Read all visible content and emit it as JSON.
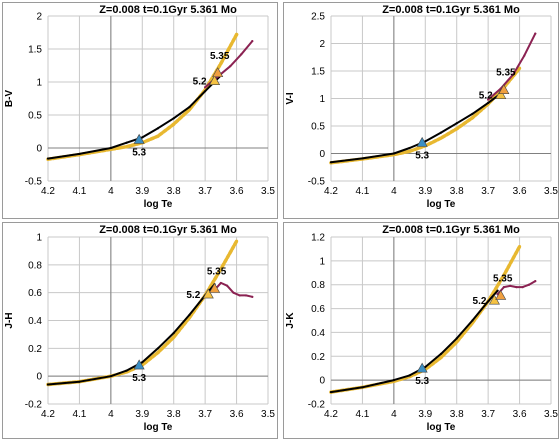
{
  "chart_data": [
    {
      "type": "line",
      "title": "Z=0.008  t=0.1Gyr 5.361 Mo",
      "xlabel": "log Te",
      "ylabel": "B-V",
      "xlim": [
        4.2,
        3.5
      ],
      "ylim": [
        -0.5,
        2
      ],
      "xticks": [
        "4.2",
        "4.1",
        "4",
        "3.9",
        "3.8",
        "3.7",
        "3.6",
        "3.5"
      ],
      "yticks": [
        "-0.5",
        "0",
        "0.5",
        "1",
        "1.5",
        "2"
      ],
      "grid": true,
      "series": [
        {
          "color": "#E8B830",
          "style": "dashed",
          "x": [
            4.2,
            4.1,
            4.0,
            3.95,
            3.9,
            3.85,
            3.8,
            3.75,
            3.7,
            3.65,
            3.6
          ],
          "y": [
            -0.17,
            -0.1,
            -0.02,
            0.02,
            0.08,
            0.18,
            0.36,
            0.58,
            0.88,
            1.28,
            1.72
          ]
        },
        {
          "color": "#000000",
          "style": "solid",
          "x": [
            4.2,
            4.1,
            4.0,
            3.95,
            3.9,
            3.85,
            3.8,
            3.75,
            3.7,
            3.65
          ],
          "y": [
            -0.16,
            -0.09,
            0.0,
            0.08,
            0.16,
            0.3,
            0.45,
            0.62,
            0.86,
            1.1
          ]
        },
        {
          "color": "#8B2252",
          "style": "solid",
          "x": [
            3.7,
            3.66,
            3.62,
            3.585,
            3.55
          ],
          "y": [
            0.92,
            1.08,
            1.24,
            1.42,
            1.62
          ]
        }
      ],
      "markers": [
        {
          "label": "5.3",
          "x": 3.91,
          "y": 0.13,
          "color": "#3B8FC4"
        },
        {
          "label": "5.2",
          "x": 3.67,
          "y": 1.02,
          "color": "#F5C242"
        },
        {
          "label": "5.35",
          "x": 3.66,
          "y": 1.14,
          "color": "#F0A040"
        }
      ]
    },
    {
      "type": "line",
      "title": "Z=0.008  t=0.1Gyr 5.361 Mo",
      "xlabel": "log Te",
      "ylabel": "V-I",
      "xlim": [
        4.2,
        3.5
      ],
      "ylim": [
        -0.5,
        2.5
      ],
      "xticks": [
        "4.2",
        "4.1",
        "4",
        "3.9",
        "3.8",
        "3.7",
        "3.6",
        "3.5"
      ],
      "yticks": [
        "-0.5",
        "0",
        "0.5",
        "1",
        "1.5",
        "2",
        "2.5"
      ],
      "grid": true,
      "series": [
        {
          "color": "#E8B830",
          "style": "dashed",
          "x": [
            4.2,
            4.1,
            4.0,
            3.95,
            3.9,
            3.85,
            3.8,
            3.75,
            3.7,
            3.65,
            3.6
          ],
          "y": [
            -0.17,
            -0.1,
            -0.02,
            0.04,
            0.14,
            0.28,
            0.45,
            0.65,
            0.9,
            1.2,
            1.55
          ]
        },
        {
          "color": "#000000",
          "style": "solid",
          "x": [
            4.2,
            4.1,
            4.0,
            3.95,
            3.9,
            3.85,
            3.8,
            3.75,
            3.7,
            3.65
          ],
          "y": [
            -0.16,
            -0.09,
            0.0,
            0.1,
            0.22,
            0.38,
            0.55,
            0.72,
            0.92,
            1.13
          ]
        },
        {
          "color": "#8B2252",
          "style": "solid",
          "x": [
            3.7,
            3.66,
            3.62,
            3.585,
            3.55
          ],
          "y": [
            0.98,
            1.18,
            1.44,
            1.78,
            2.18
          ]
        }
      ],
      "markers": [
        {
          "label": "5.3",
          "x": 3.91,
          "y": 0.2,
          "color": "#3B8FC4"
        },
        {
          "label": "5.2",
          "x": 3.66,
          "y": 1.07,
          "color": "#F5C242"
        },
        {
          "label": "5.35",
          "x": 3.65,
          "y": 1.16,
          "color": "#F0A040"
        }
      ]
    },
    {
      "type": "line",
      "title": "Z=0.008  t=0.1Gyr 5.361 Mo",
      "xlabel": "log Te",
      "ylabel": "J-H",
      "xlim": [
        4.2,
        3.5
      ],
      "ylim": [
        -0.2,
        1
      ],
      "xticks": [
        "4.2",
        "4.1",
        "4",
        "3.9",
        "3.8",
        "3.7",
        "3.6",
        "3.5"
      ],
      "yticks": [
        "-0.2",
        "0",
        "0.2",
        "0.4",
        "0.6",
        "0.8",
        "1"
      ],
      "grid": true,
      "series": [
        {
          "color": "#E8B830",
          "style": "dashed",
          "x": [
            4.2,
            4.1,
            4.0,
            3.95,
            3.9,
            3.85,
            3.8,
            3.75,
            3.7,
            3.65,
            3.6
          ],
          "y": [
            -0.06,
            -0.04,
            0.0,
            0.03,
            0.08,
            0.17,
            0.28,
            0.42,
            0.58,
            0.77,
            0.97
          ]
        },
        {
          "color": "#000000",
          "style": "solid",
          "x": [
            4.2,
            4.1,
            4.0,
            3.95,
            3.9,
            3.85,
            3.8,
            3.75,
            3.7,
            3.67
          ],
          "y": [
            -0.06,
            -0.04,
            0.0,
            0.04,
            0.1,
            0.2,
            0.31,
            0.44,
            0.58,
            0.66
          ]
        },
        {
          "color": "#8B2252",
          "style": "solid",
          "x": [
            3.67,
            3.65,
            3.63,
            3.61,
            3.59,
            3.57,
            3.55
          ],
          "y": [
            0.62,
            0.67,
            0.65,
            0.6,
            0.58,
            0.58,
            0.57
          ]
        }
      ],
      "markers": [
        {
          "label": "5.3",
          "x": 3.91,
          "y": 0.08,
          "color": "#3B8FC4"
        },
        {
          "label": "5.2",
          "x": 3.69,
          "y": 0.59,
          "color": "#F5C242"
        },
        {
          "label": "5.35",
          "x": 3.67,
          "y": 0.63,
          "color": "#F0A040"
        }
      ]
    },
    {
      "type": "line",
      "title": "Z=0.008  t=0.1Gyr 5.361 Mo",
      "xlabel": "log Te",
      "ylabel": "J-K",
      "xlim": [
        4.2,
        3.5
      ],
      "ylim": [
        -0.2,
        1.2
      ],
      "xticks": [
        "4.2",
        "4.1",
        "4",
        "3.9",
        "3.8",
        "3.7",
        "3.6",
        "3.5"
      ],
      "yticks": [
        "-0.2",
        "0",
        "0.2",
        "0.4",
        "0.6",
        "0.8",
        "1",
        "1.2"
      ],
      "grid": true,
      "series": [
        {
          "color": "#E8B830",
          "style": "dashed",
          "x": [
            4.2,
            4.1,
            4.0,
            3.95,
            3.9,
            3.85,
            3.8,
            3.75,
            3.7,
            3.65,
            3.6
          ],
          "y": [
            -0.1,
            -0.06,
            -0.01,
            0.03,
            0.09,
            0.19,
            0.32,
            0.48,
            0.66,
            0.88,
            1.12
          ]
        },
        {
          "color": "#000000",
          "style": "solid",
          "x": [
            4.2,
            4.1,
            4.0,
            3.95,
            3.9,
            3.85,
            3.8,
            3.75,
            3.7,
            3.67
          ],
          "y": [
            -0.1,
            -0.06,
            0.0,
            0.04,
            0.11,
            0.22,
            0.35,
            0.5,
            0.66,
            0.75
          ]
        },
        {
          "color": "#8B2252",
          "style": "solid",
          "x": [
            3.67,
            3.65,
            3.63,
            3.61,
            3.59,
            3.57,
            3.55
          ],
          "y": [
            0.72,
            0.78,
            0.79,
            0.78,
            0.78,
            0.8,
            0.83
          ]
        }
      ],
      "markers": [
        {
          "label": "5.3",
          "x": 3.91,
          "y": 0.1,
          "color": "#3B8FC4"
        },
        {
          "label": "5.2",
          "x": 3.68,
          "y": 0.67,
          "color": "#F5C242"
        },
        {
          "label": "5.35",
          "x": 3.66,
          "y": 0.71,
          "color": "#F0A040"
        }
      ]
    }
  ]
}
